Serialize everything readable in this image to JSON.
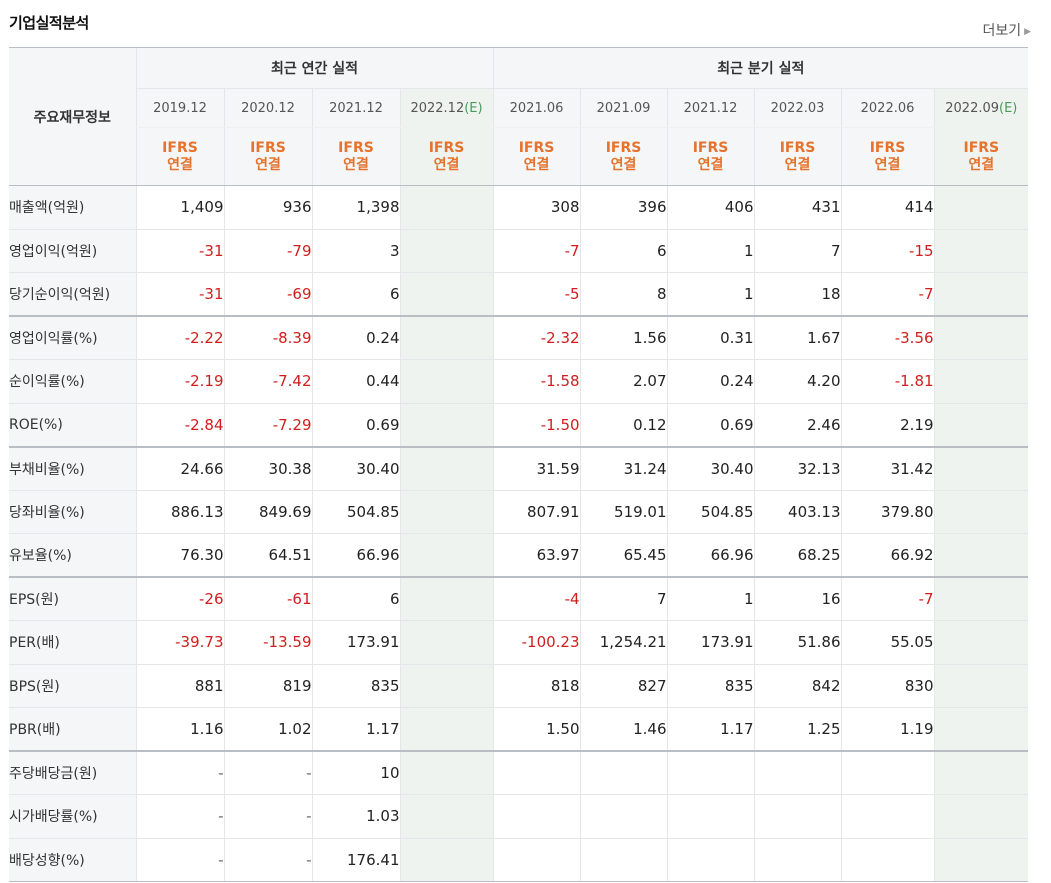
{
  "header": {
    "title": "기업실적분석",
    "more_label": "더보기"
  },
  "table": {
    "corner_label": "주요재무정보",
    "groups": {
      "annual": "최근 연간 실적",
      "quarter": "최근 분기 실적"
    },
    "annual_periods": [
      "2019.12",
      "2020.12",
      "2021.12",
      "2022.12"
    ],
    "quarter_periods": [
      "2021.06",
      "2021.09",
      "2021.12",
      "2022.03",
      "2022.06",
      "2022.09"
    ],
    "estimate_mark": "(E)",
    "ifrs": {
      "line1": "IFRS",
      "line2": "연결"
    },
    "rows": [
      {
        "label": "매출액(억원)",
        "values": [
          "1,409",
          "936",
          "1,398",
          "",
          "308",
          "396",
          "406",
          "431",
          "414",
          ""
        ]
      },
      {
        "label": "영업이익(억원)",
        "values": [
          "-31",
          "-79",
          "3",
          "",
          "-7",
          "6",
          "1",
          "7",
          "-15",
          ""
        ]
      },
      {
        "label": "당기순이익(억원)",
        "values": [
          "-31",
          "-69",
          "6",
          "",
          "-5",
          "8",
          "1",
          "18",
          "-7",
          ""
        ]
      },
      {
        "label": "영업이익률(%)",
        "values": [
          "-2.22",
          "-8.39",
          "0.24",
          "",
          "-2.32",
          "1.56",
          "0.31",
          "1.67",
          "-3.56",
          ""
        ]
      },
      {
        "label": "순이익률(%)",
        "values": [
          "-2.19",
          "-7.42",
          "0.44",
          "",
          "-1.58",
          "2.07",
          "0.24",
          "4.20",
          "-1.81",
          ""
        ]
      },
      {
        "label": "ROE(%)",
        "values": [
          "-2.84",
          "-7.29",
          "0.69",
          "",
          "-1.50",
          "0.12",
          "0.69",
          "2.46",
          "2.19",
          ""
        ]
      },
      {
        "label": "부채비율(%)",
        "values": [
          "24.66",
          "30.38",
          "30.40",
          "",
          "31.59",
          "31.24",
          "30.40",
          "32.13",
          "31.42",
          ""
        ]
      },
      {
        "label": "당좌비율(%)",
        "values": [
          "886.13",
          "849.69",
          "504.85",
          "",
          "807.91",
          "519.01",
          "504.85",
          "403.13",
          "379.80",
          ""
        ]
      },
      {
        "label": "유보율(%)",
        "values": [
          "76.30",
          "64.51",
          "66.96",
          "",
          "63.97",
          "65.45",
          "66.96",
          "68.25",
          "66.92",
          ""
        ]
      },
      {
        "label": "EPS(원)",
        "values": [
          "-26",
          "-61",
          "6",
          "",
          "-4",
          "7",
          "1",
          "16",
          "-7",
          ""
        ]
      },
      {
        "label": "PER(배)",
        "values": [
          "-39.73",
          "-13.59",
          "173.91",
          "",
          "-100.23",
          "1,254.21",
          "173.91",
          "51.86",
          "55.05",
          ""
        ]
      },
      {
        "label": "BPS(원)",
        "values": [
          "881",
          "819",
          "835",
          "",
          "818",
          "827",
          "835",
          "842",
          "830",
          ""
        ]
      },
      {
        "label": "PBR(배)",
        "values": [
          "1.16",
          "1.02",
          "1.17",
          "",
          "1.50",
          "1.46",
          "1.17",
          "1.25",
          "1.19",
          ""
        ]
      },
      {
        "label": "주당배당금(원)",
        "values": [
          "-",
          "-",
          "10",
          "",
          "",
          "",
          "",
          "",
          "",
          ""
        ]
      },
      {
        "label": "시가배당률(%)",
        "values": [
          "-",
          "-",
          "1.03",
          "",
          "",
          "",
          "",
          "",
          "",
          ""
        ]
      },
      {
        "label": "배당성향(%)",
        "values": [
          "-",
          "-",
          "176.41",
          "",
          "",
          "",
          "",
          "",
          "",
          ""
        ]
      }
    ]
  },
  "colors": {
    "negative": "#d01e1e",
    "ifrs": "#e6732d",
    "estimate": "#4a9a5a",
    "estimate_bg": "#eef3f0"
  }
}
